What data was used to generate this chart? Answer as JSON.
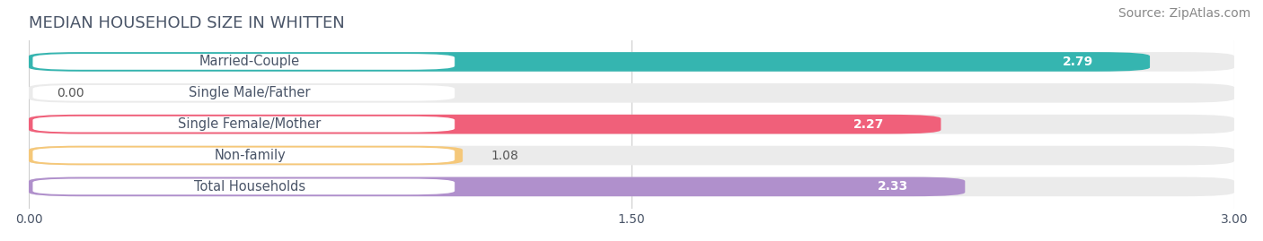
{
  "title": "MEDIAN HOUSEHOLD SIZE IN WHITTEN",
  "source": "Source: ZipAtlas.com",
  "categories": [
    "Married-Couple",
    "Single Male/Father",
    "Single Female/Mother",
    "Non-family",
    "Total Households"
  ],
  "values": [
    2.79,
    0.0,
    2.27,
    1.08,
    2.33
  ],
  "bar_colors": [
    "#35b5b0",
    "#a8bce8",
    "#f0607a",
    "#f5c87a",
    "#b090cc"
  ],
  "bar_bg_color": "#ebebeb",
  "xlim": [
    0,
    3.0
  ],
  "xticks": [
    0.0,
    1.5,
    3.0
  ],
  "xtick_labels": [
    "0.00",
    "1.50",
    "3.00"
  ],
  "label_color": "#4a5568",
  "value_color_inside": "#ffffff",
  "value_color_outside": "#555555",
  "background_color": "#ffffff",
  "title_fontsize": 13,
  "source_fontsize": 10,
  "label_fontsize": 10.5,
  "value_fontsize": 10,
  "tick_fontsize": 10,
  "grid_color": "#cccccc"
}
